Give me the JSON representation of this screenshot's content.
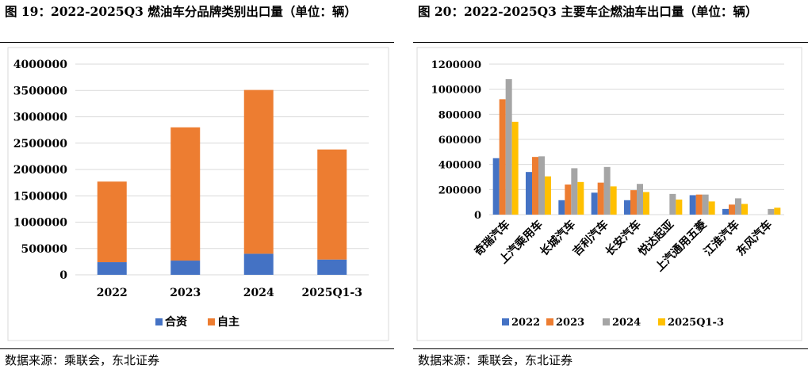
{
  "chart_data": [
    {
      "type": "bar",
      "stacked": true,
      "title": "图 19：2022-2025Q3 燃油车分品牌类别出口量（单位：辆）",
      "categories": [
        "2022",
        "2023",
        "2024",
        "2025Q1-3"
      ],
      "series": [
        {
          "name": "合资",
          "color": "#4472C4",
          "values": [
            240000,
            270000,
            400000,
            290000
          ]
        },
        {
          "name": "自主",
          "color": "#ED7D31",
          "values": [
            1530000,
            2530000,
            3110000,
            2090000
          ]
        }
      ],
      "yticks": [
        "0",
        "500000",
        "1000000",
        "1500000",
        "2000000",
        "2500000",
        "3000000",
        "3500000",
        "4000000"
      ],
      "ylim": [
        0,
        4000000
      ],
      "legend": "bottom",
      "grid": true,
      "source": "数据来源：乘联会，东北证券"
    },
    {
      "type": "bar",
      "title": "图 20：2022-2025Q3 主要车企燃油车出口量（单位：辆）",
      "categories": [
        "奇瑞汽车",
        "上汽乘用车",
        "长城汽车",
        "吉利汽车",
        "长安汽车",
        "悦达起亚",
        "上汽通用五菱",
        "江淮汽车",
        "东风汽车"
      ],
      "series": [
        {
          "name": "2022",
          "color": "#4472C4",
          "values": [
            450000,
            340000,
            115000,
            175000,
            115000,
            0,
            155000,
            45000,
            0
          ]
        },
        {
          "name": "2023",
          "color": "#ED7D31",
          "values": [
            920000,
            460000,
            240000,
            255000,
            195000,
            0,
            160000,
            80000,
            0
          ]
        },
        {
          "name": "2024",
          "color": "#A5A5A5",
          "values": [
            1080000,
            465000,
            370000,
            380000,
            245000,
            165000,
            160000,
            130000,
            45000
          ]
        },
        {
          "name": "2025Q1-3",
          "color": "#FFC000",
          "values": [
            740000,
            305000,
            260000,
            225000,
            180000,
            120000,
            105000,
            85000,
            55000
          ]
        }
      ],
      "yticks": [
        "0",
        "200000",
        "400000",
        "600000",
        "800000",
        "1000000",
        "1200000"
      ],
      "ylim": [
        0,
        1200000
      ],
      "legend": "bottom",
      "grid": true,
      "source": "数据来源：乘联会，东北证券"
    }
  ]
}
